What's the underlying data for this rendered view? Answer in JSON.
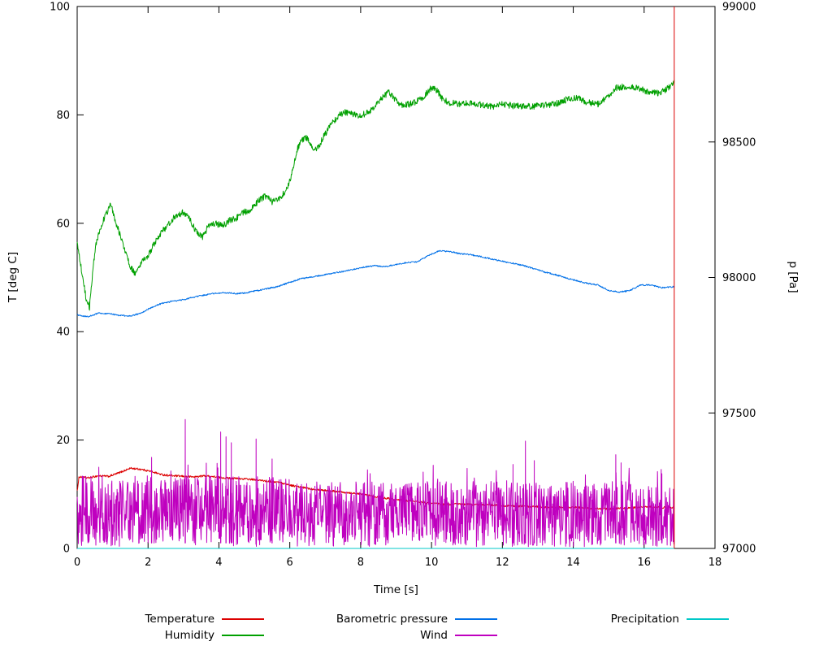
{
  "chart_data": {
    "type": "line",
    "title": "",
    "xlabel": "Time [s]",
    "ylabel_left": "T [deg C]",
    "ylabel_right": "p [Pa]",
    "x_range": [
      0,
      18
    ],
    "y_left_range": [
      0,
      100
    ],
    "y_right_range": [
      97000,
      99000
    ],
    "x_ticks": [
      0,
      2,
      4,
      6,
      8,
      10,
      12,
      14,
      16,
      18
    ],
    "y_left_ticks": [
      0,
      20,
      40,
      60,
      80,
      100
    ],
    "y_right_ticks": [
      97000,
      97500,
      98000,
      98500,
      99000
    ],
    "x_end": 16.85,
    "grid": false,
    "legend_position": "bottom",
    "end_marker": {
      "x": 16.85,
      "y_from": 0,
      "y_to": 100,
      "color": "#dc0000"
    },
    "series": [
      {
        "name": "Temperature",
        "color": "#dc0000",
        "axis": "left",
        "kind": "keypoints",
        "noise": 0.18,
        "samples": 1400,
        "keypoints": [
          [
            0,
            10.5
          ],
          [
            0.05,
            13.2
          ],
          [
            0.3,
            13.0
          ],
          [
            0.6,
            13.4
          ],
          [
            0.9,
            13.3
          ],
          [
            1.2,
            14.0
          ],
          [
            1.5,
            14.8
          ],
          [
            1.8,
            14.6
          ],
          [
            2.1,
            14.2
          ],
          [
            2.4,
            13.6
          ],
          [
            2.7,
            13.4
          ],
          [
            3.0,
            13.3
          ],
          [
            3.3,
            13.2
          ],
          [
            3.6,
            13.4
          ],
          [
            3.9,
            13.2
          ],
          [
            4.2,
            13.0
          ],
          [
            4.5,
            12.9
          ],
          [
            4.8,
            12.8
          ],
          [
            5.1,
            12.6
          ],
          [
            5.4,
            12.4
          ],
          [
            5.7,
            12.2
          ],
          [
            6.0,
            11.7
          ],
          [
            6.3,
            11.3
          ],
          [
            6.6,
            11.0
          ],
          [
            6.9,
            10.8
          ],
          [
            7.2,
            10.6
          ],
          [
            7.5,
            10.4
          ],
          [
            7.8,
            10.2
          ],
          [
            8.1,
            9.9
          ],
          [
            8.4,
            9.6
          ],
          [
            8.7,
            9.3
          ],
          [
            9.0,
            9.0
          ],
          [
            9.3,
            8.8
          ],
          [
            9.6,
            8.6
          ],
          [
            10.0,
            8.3
          ],
          [
            10.4,
            8.1
          ],
          [
            10.8,
            8.2
          ],
          [
            11.2,
            8.1
          ],
          [
            11.6,
            8.0
          ],
          [
            12.0,
            7.9
          ],
          [
            12.5,
            7.8
          ],
          [
            13.0,
            7.7
          ],
          [
            13.5,
            7.6
          ],
          [
            14.0,
            7.6
          ],
          [
            14.5,
            7.4
          ],
          [
            15.0,
            7.3
          ],
          [
            15.5,
            7.4
          ],
          [
            16.0,
            7.7
          ],
          [
            16.4,
            7.6
          ],
          [
            16.85,
            7.5
          ]
        ]
      },
      {
        "name": "Humidity",
        "color": "#00a000",
        "axis": "left",
        "kind": "keypoints",
        "noise": 0.6,
        "samples": 1400,
        "keypoints": [
          [
            0,
            57
          ],
          [
            0.08,
            53
          ],
          [
            0.15,
            50.5
          ],
          [
            0.25,
            46
          ],
          [
            0.35,
            44.5
          ],
          [
            0.5,
            55
          ],
          [
            0.6,
            58
          ],
          [
            0.7,
            60
          ],
          [
            0.8,
            61.5
          ],
          [
            0.95,
            63.5
          ],
          [
            1.1,
            60
          ],
          [
            1.3,
            56
          ],
          [
            1.5,
            52
          ],
          [
            1.65,
            50.5
          ],
          [
            1.8,
            52.5
          ],
          [
            2.0,
            54
          ],
          [
            2.2,
            56.5
          ],
          [
            2.4,
            58.5
          ],
          [
            2.6,
            60
          ],
          [
            2.8,
            61.5
          ],
          [
            3.0,
            62
          ],
          [
            3.2,
            60.5
          ],
          [
            3.4,
            58
          ],
          [
            3.55,
            57.5
          ],
          [
            3.7,
            59.5
          ],
          [
            3.9,
            60
          ],
          [
            4.1,
            59.5
          ],
          [
            4.3,
            60.5
          ],
          [
            4.5,
            61
          ],
          [
            4.7,
            62
          ],
          [
            4.9,
            62.5
          ],
          [
            5.1,
            64
          ],
          [
            5.3,
            65
          ],
          [
            5.5,
            64
          ],
          [
            5.7,
            64.5
          ],
          [
            5.9,
            66
          ],
          [
            6.05,
            69
          ],
          [
            6.2,
            73.5
          ],
          [
            6.35,
            75.5
          ],
          [
            6.5,
            75.8
          ],
          [
            6.65,
            73.5
          ],
          [
            6.8,
            74
          ],
          [
            7.0,
            76.5
          ],
          [
            7.2,
            78.5
          ],
          [
            7.4,
            80
          ],
          [
            7.6,
            80.5
          ],
          [
            7.8,
            80
          ],
          [
            8.0,
            79.8
          ],
          [
            8.2,
            80.5
          ],
          [
            8.4,
            81.5
          ],
          [
            8.6,
            83
          ],
          [
            8.8,
            84.3
          ],
          [
            9.0,
            82.5
          ],
          [
            9.2,
            81.8
          ],
          [
            9.4,
            82
          ],
          [
            9.6,
            82.5
          ],
          [
            9.8,
            83.5
          ],
          [
            10.0,
            85
          ],
          [
            10.15,
            84.5
          ],
          [
            10.3,
            83
          ],
          [
            10.5,
            82.3
          ],
          [
            10.8,
            82
          ],
          [
            11.1,
            82.2
          ],
          [
            11.4,
            81.8
          ],
          [
            11.7,
            81.5
          ],
          [
            12.0,
            82
          ],
          [
            12.3,
            81.7
          ],
          [
            12.6,
            81.5
          ],
          [
            12.9,
            81.6
          ],
          [
            13.2,
            81.8
          ],
          [
            13.5,
            82
          ],
          [
            13.8,
            82.8
          ],
          [
            14.1,
            83.2
          ],
          [
            14.4,
            82.3
          ],
          [
            14.7,
            82
          ],
          [
            15.0,
            83.5
          ],
          [
            15.2,
            85
          ],
          [
            15.5,
            85.2
          ],
          [
            15.8,
            85
          ],
          [
            16.1,
            84.3
          ],
          [
            16.4,
            84
          ],
          [
            16.6,
            84.6
          ],
          [
            16.85,
            86
          ]
        ]
      },
      {
        "name": "Barometric pressure",
        "color": "#0070e8",
        "axis": "right",
        "kind": "keypoints",
        "noise": 2.5,
        "samples": 1400,
        "keypoints": [
          [
            0,
            97862
          ],
          [
            0.3,
            97855
          ],
          [
            0.6,
            97868
          ],
          [
            0.9,
            97866
          ],
          [
            1.2,
            97860
          ],
          [
            1.5,
            97858
          ],
          [
            1.8,
            97868
          ],
          [
            2.1,
            97890
          ],
          [
            2.4,
            97905
          ],
          [
            2.7,
            97912
          ],
          [
            3.0,
            97918
          ],
          [
            3.3,
            97928
          ],
          [
            3.6,
            97935
          ],
          [
            3.9,
            97942
          ],
          [
            4.2,
            97944
          ],
          [
            4.5,
            97940
          ],
          [
            4.8,
            97944
          ],
          [
            5.1,
            97952
          ],
          [
            5.4,
            97960
          ],
          [
            5.7,
            97968
          ],
          [
            6.0,
            97982
          ],
          [
            6.3,
            97995
          ],
          [
            6.6,
            98002
          ],
          [
            6.9,
            98008
          ],
          [
            7.2,
            98015
          ],
          [
            7.5,
            98022
          ],
          [
            7.8,
            98030
          ],
          [
            8.1,
            98038
          ],
          [
            8.4,
            98044
          ],
          [
            8.7,
            98040
          ],
          [
            9.0,
            98048
          ],
          [
            9.3,
            98055
          ],
          [
            9.6,
            98058
          ],
          [
            9.9,
            98080
          ],
          [
            10.2,
            98098
          ],
          [
            10.5,
            98096
          ],
          [
            10.8,
            98088
          ],
          [
            11.1,
            98084
          ],
          [
            11.4,
            98077
          ],
          [
            11.7,
            98068
          ],
          [
            12.0,
            98060
          ],
          [
            12.3,
            98052
          ],
          [
            12.6,
            98044
          ],
          [
            12.9,
            98032
          ],
          [
            13.2,
            98020
          ],
          [
            13.5,
            98010
          ],
          [
            13.8,
            97998
          ],
          [
            14.1,
            97988
          ],
          [
            14.4,
            97978
          ],
          [
            14.7,
            97972
          ],
          [
            15.0,
            97952
          ],
          [
            15.3,
            97946
          ],
          [
            15.6,
            97952
          ],
          [
            15.9,
            97972
          ],
          [
            16.2,
            97972
          ],
          [
            16.5,
            97962
          ],
          [
            16.85,
            97966
          ]
        ]
      },
      {
        "name": "Wind",
        "color": "#bf00bf",
        "axis": "left",
        "kind": "noise",
        "samples": 1600,
        "base_min": 0.3,
        "base_max_early": 13.4,
        "base_max_late": 12.4,
        "split": 6.0,
        "spike_chance": 0.012,
        "spike_extra": 3,
        "spikes": [
          [
            2.1,
            16.8
          ],
          [
            3.05,
            23.8
          ],
          [
            4.05,
            21.5
          ],
          [
            4.2,
            20.6
          ],
          [
            4.35,
            19.5
          ],
          [
            5.05,
            20.2
          ],
          [
            5.5,
            16.5
          ],
          [
            12.3,
            15.5
          ],
          [
            12.65,
            19.8
          ],
          [
            12.9,
            16.2
          ],
          [
            15.2,
            17.3
          ],
          [
            15.35,
            15.8
          ],
          [
            16.5,
            13.8
          ]
        ]
      },
      {
        "name": "Precipitation",
        "color": "#00c8c8",
        "axis": "left",
        "kind": "keypoints",
        "noise": 0,
        "samples": 2,
        "keypoints": [
          [
            0,
            0
          ],
          [
            16.85,
            0
          ]
        ]
      }
    ],
    "legend": {
      "rows": [
        [
          {
            "label": "Temperature",
            "color": "#dc0000"
          },
          {
            "label": "Barometric pressure",
            "color": "#0070e8"
          },
          {
            "label": "Precipitation",
            "color": "#00c8c8"
          }
        ],
        [
          {
            "label": "Humidity",
            "color": "#00a000"
          },
          {
            "label": "Wind",
            "color": "#bf00bf"
          }
        ]
      ]
    }
  }
}
